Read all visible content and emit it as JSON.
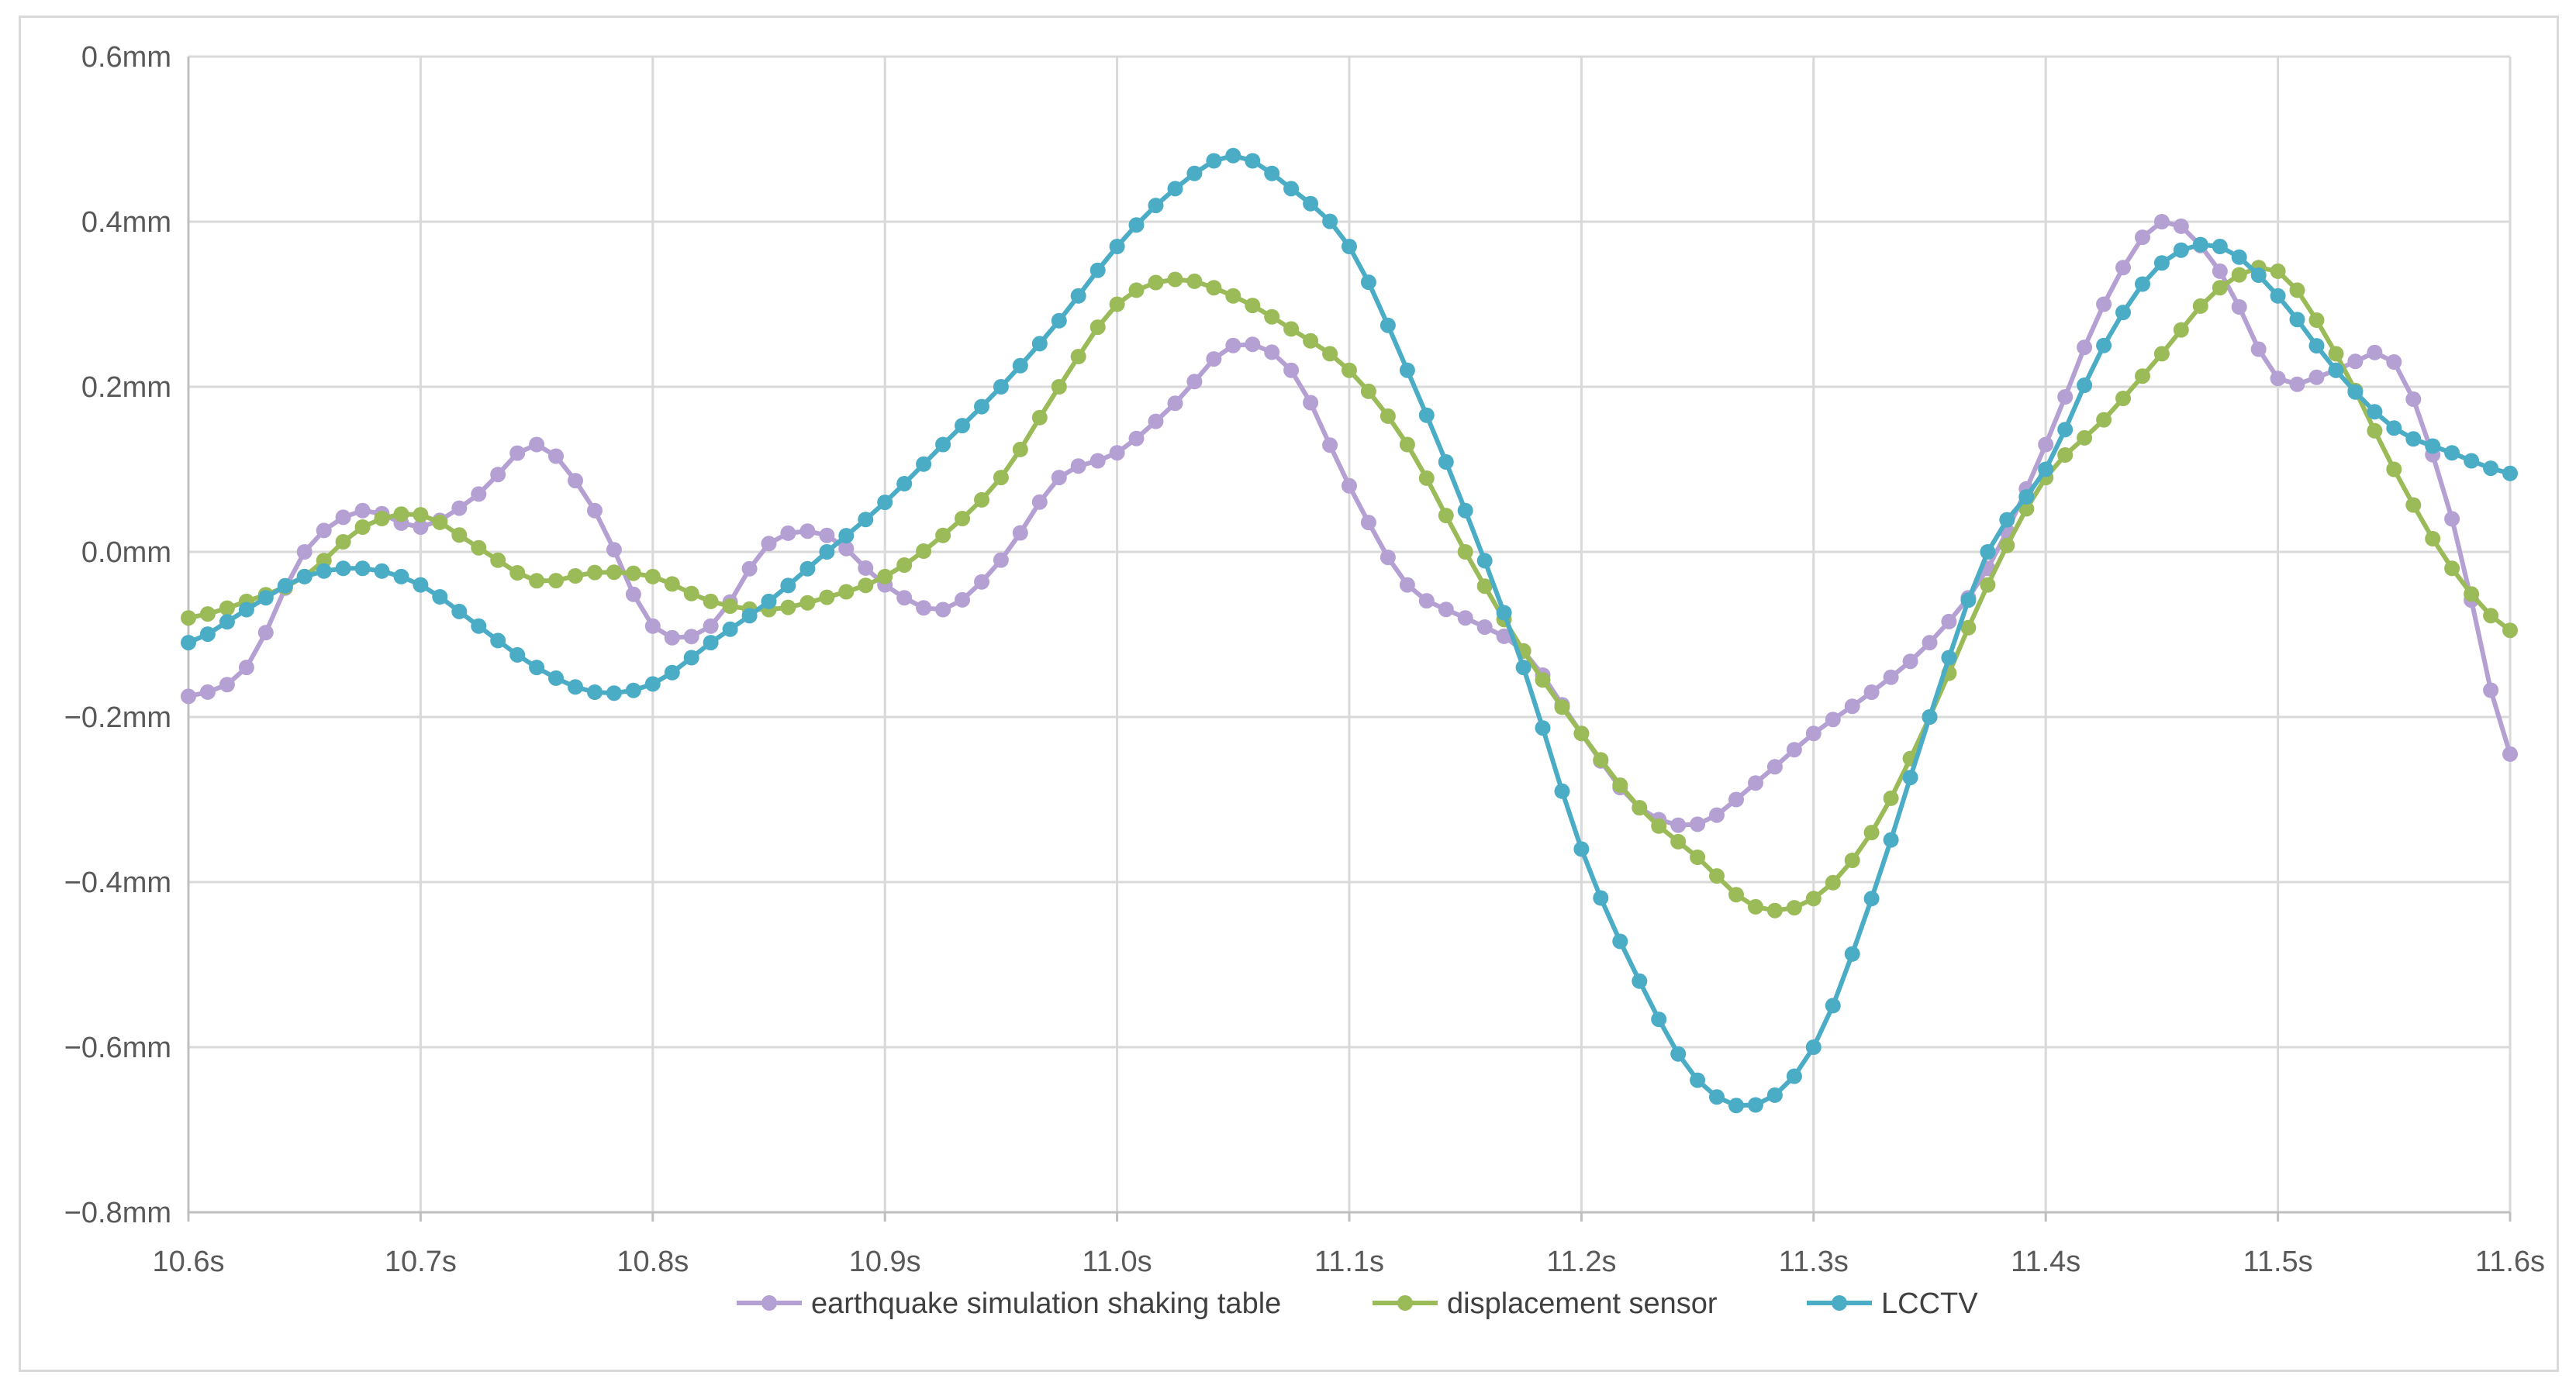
{
  "chart_data": {
    "type": "line",
    "x": [
      10.6,
      10.625,
      10.65,
      10.675,
      10.7,
      10.725,
      10.75,
      10.775,
      10.8,
      10.825,
      10.85,
      10.875,
      10.9,
      10.925,
      10.95,
      10.975,
      11.0,
      11.025,
      11.05,
      11.075,
      11.1,
      11.125,
      11.15,
      11.175,
      11.2,
      11.225,
      11.25,
      11.275,
      11.3,
      11.325,
      11.35,
      11.375,
      11.4,
      11.425,
      11.45,
      11.475,
      11.5,
      11.525,
      11.55,
      11.575,
      11.6
    ],
    "series": [
      {
        "name": "earthquake simulation shaking table",
        "color": "#b4a0d2",
        "values": [
          -0.175,
          -0.14,
          0.0,
          0.05,
          0.03,
          0.07,
          0.13,
          0.05,
          -0.09,
          -0.09,
          0.01,
          0.02,
          -0.04,
          -0.07,
          -0.01,
          0.09,
          0.12,
          0.18,
          0.25,
          0.22,
          0.08,
          -0.04,
          -0.08,
          -0.12,
          -0.22,
          -0.31,
          -0.33,
          -0.28,
          -0.22,
          -0.17,
          -0.11,
          -0.02,
          0.13,
          0.3,
          0.4,
          0.34,
          0.21,
          0.22,
          0.23,
          0.04,
          -0.245
        ]
      },
      {
        "name": "displacement sensor",
        "color": "#9bbb59",
        "values": [
          -0.08,
          -0.06,
          -0.03,
          0.03,
          0.045,
          0.005,
          -0.035,
          -0.025,
          -0.03,
          -0.06,
          -0.07,
          -0.055,
          -0.03,
          0.02,
          0.09,
          0.2,
          0.3,
          0.33,
          0.31,
          0.27,
          0.22,
          0.13,
          0.0,
          -0.12,
          -0.22,
          -0.31,
          -0.37,
          -0.43,
          -0.42,
          -0.34,
          -0.2,
          -0.04,
          0.09,
          0.16,
          0.24,
          0.32,
          0.34,
          0.24,
          0.1,
          -0.02,
          -0.095
        ]
      },
      {
        "name": "LCCTV",
        "color": "#4bacc6",
        "values": [
          -0.11,
          -0.07,
          -0.03,
          -0.02,
          -0.04,
          -0.09,
          -0.14,
          -0.17,
          -0.16,
          -0.11,
          -0.06,
          0.0,
          0.06,
          0.13,
          0.2,
          0.28,
          0.37,
          0.44,
          0.48,
          0.44,
          0.37,
          0.22,
          0.05,
          -0.14,
          -0.36,
          -0.52,
          -0.64,
          -0.67,
          -0.6,
          -0.42,
          -0.2,
          0.0,
          0.1,
          0.25,
          0.35,
          0.37,
          0.31,
          0.22,
          0.15,
          0.12,
          0.095
        ]
      }
    ],
    "x_ticks": [
      "10.6s",
      "10.7s",
      "10.8s",
      "10.9s",
      "11.0s",
      "11.1s",
      "11.2s",
      "11.3s",
      "11.4s",
      "11.5s",
      "11.6s"
    ],
    "y_ticks": [
      "0.6mm",
      "0.4mm",
      "0.2mm",
      "0.0mm",
      "−0.2mm",
      "−0.4mm",
      "−0.6mm",
      "−0.8mm"
    ],
    "xlim": [
      10.6,
      11.6
    ],
    "ylim": [
      -0.8,
      0.6
    ],
    "grid": true,
    "legend_position": "bottom",
    "gridline_color": "#d9d9d9"
  }
}
